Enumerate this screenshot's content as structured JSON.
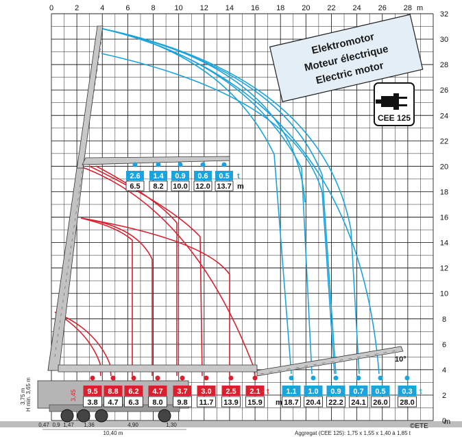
{
  "colors": {
    "blue": "#1aa3dc",
    "red": "#d8202e",
    "grid": "#222222",
    "crane": "#b9b9b9",
    "banner_bg": "#e4eef6",
    "ground": "#bdbdbd"
  },
  "axes": {
    "x_unit": "m",
    "y_unit": "m",
    "x_ticks": [
      "0",
      "2",
      "4",
      "6",
      "8",
      "10",
      "12",
      "14",
      "16",
      "18",
      "20",
      "22",
      "24",
      "26",
      "28"
    ],
    "y_ticks": [
      "32",
      "30",
      "28",
      "26",
      "24",
      "22",
      "20",
      "18",
      "16",
      "14",
      "12",
      "10",
      "8",
      "6",
      "4",
      "2",
      "0"
    ]
  },
  "banner": {
    "line1": "Elektromotor",
    "line2": "Moteur électrique",
    "line3": "Electric motor"
  },
  "plug": {
    "icon": "plug-icon",
    "label": "CEE 125"
  },
  "jib_angle": "10°",
  "upper_table": {
    "t_unit": "t",
    "m_unit": "m",
    "loads": [
      "2.6",
      "1.4",
      "0.9",
      "0.6",
      "0.5"
    ],
    "radii": [
      "6.5",
      "8.2",
      "10.0",
      "12.0",
      "13.7"
    ]
  },
  "lower_table": {
    "t_unit": "t",
    "m_unit": "m",
    "red_loads": [
      "9.5",
      "8.8",
      "6.2",
      "4.7",
      "3.7",
      "3.0",
      "2.5",
      "2.1"
    ],
    "red_radii": [
      "3.8",
      "4.7",
      "6.3",
      "8.0",
      "9.8",
      "11.7",
      "13.9",
      "15.9"
    ],
    "blue_loads": [
      "1.1",
      "1.0",
      "0.9",
      "0.7",
      "0.5",
      "0.3"
    ],
    "blue_radii": [
      "18.7",
      "20.4",
      "22.2",
      "24.1",
      "26.0",
      "28.0"
    ]
  },
  "dimensions": {
    "h1": "3,75 m",
    "h2": "H min. 3,65 m",
    "h3": "3,45",
    "bottom": [
      "0,47",
      "0,9",
      "1,47",
      "1,36",
      "4,90",
      "1,30"
    ],
    "total": "10,40 m"
  },
  "footer": {
    "copyright": "©ETE",
    "aggregate": "Aggregat (CEE 125): 1,75 x 1,55 x 1,40 à 1,85 t"
  }
}
